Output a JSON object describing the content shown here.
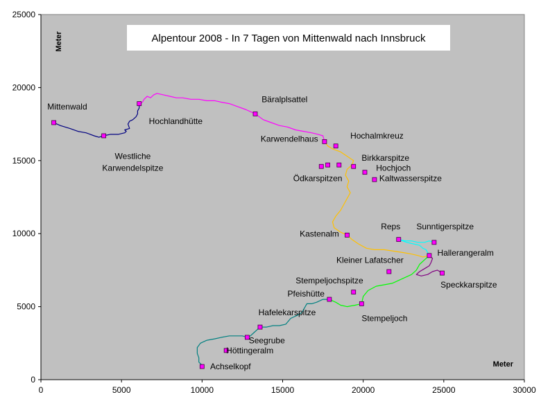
{
  "chart_data": {
    "type": "scatter",
    "title": "Alpentour 2008 - In 7 Tagen von Mittenwald nach Innsbruck",
    "xlabel": "Meter",
    "ylabel": "Meter",
    "xlim": [
      0,
      30000
    ],
    "ylim": [
      0,
      25000
    ],
    "x_ticks": [
      0,
      5000,
      10000,
      15000,
      20000,
      25000,
      30000
    ],
    "y_ticks": [
      0,
      5000,
      10000,
      15000,
      20000,
      25000
    ],
    "grid": false,
    "plot_background": "#c0c0c0",
    "points": [
      {
        "name": "Mittenwald",
        "x": 800,
        "y": 17600
      },
      {
        "name": "Westliche Karwendelspitze",
        "x": 3900,
        "y": 16700
      },
      {
        "name": "Hochlandhütte",
        "x": 6100,
        "y": 18900
      },
      {
        "name": "Bäralplsattel",
        "x": 13300,
        "y": 18200
      },
      {
        "name": "Karwendelhaus",
        "x": 17600,
        "y": 16300
      },
      {
        "name": "Hochalmkreuz",
        "x": 18300,
        "y": 16000
      },
      {
        "name": "Ödkarspitzen 1",
        "x": 17400,
        "y": 14600
      },
      {
        "name": "Ödkarspitzen 2",
        "x": 17800,
        "y": 14700
      },
      {
        "name": "Ödkarspitzen 3",
        "x": 18500,
        "y": 14700
      },
      {
        "name": "Birkkarspitze",
        "x": 19400,
        "y": 14600
      },
      {
        "name": "Hochjoch",
        "x": 20100,
        "y": 14200
      },
      {
        "name": "Kaltwasserspitze",
        "x": 20700,
        "y": 13700
      },
      {
        "name": "Kastenalm",
        "x": 19000,
        "y": 9900
      },
      {
        "name": "Reps",
        "x": 22200,
        "y": 9600
      },
      {
        "name": "Sunntigerspitze",
        "x": 24400,
        "y": 9400
      },
      {
        "name": "Hallerangeralm",
        "x": 24100,
        "y": 8500
      },
      {
        "name": "Kleiner Lafatscher",
        "x": 21600,
        "y": 7400
      },
      {
        "name": "Speckkarspitze",
        "x": 24900,
        "y": 7300
      },
      {
        "name": "Stempeljochspitze",
        "x": 19400,
        "y": 6000
      },
      {
        "name": "Pfeishütte",
        "x": 17900,
        "y": 5500
      },
      {
        "name": "Stempeljoch",
        "x": 19900,
        "y": 5200
      },
      {
        "name": "Hafelekarspitze",
        "x": 13600,
        "y": 3600
      },
      {
        "name": "Seegrube",
        "x": 12800,
        "y": 2900
      },
      {
        "name": "Höttingeralm",
        "x": 11500,
        "y": 2000
      },
      {
        "name": "Achselkopf",
        "x": 10000,
        "y": 900
      }
    ],
    "labels": [
      {
        "text": "Mittenwald",
        "x": 400,
        "y": 18500
      },
      {
        "text": "Westliche",
        "x": 5700,
        "y": 15100
      },
      {
        "text": "Karwendelspitze",
        "x": 5700,
        "y": 14300
      },
      {
        "text": "Hochlandhütte",
        "x": 6700,
        "y": 17500
      },
      {
        "text": "Bäralplsattel",
        "x": 13700,
        "y": 19000
      },
      {
        "text": "Karwendelhaus",
        "x": 17200,
        "y": 16300
      },
      {
        "text": "Hochalmkreuz",
        "x": 19200,
        "y": 16500
      },
      {
        "text": "Birkkarspitze",
        "x": 19900,
        "y": 15000
      },
      {
        "text": "Hochjoch",
        "x": 20800,
        "y": 14300
      },
      {
        "text": "Ödkarspitzen",
        "x": 18700,
        "y": 13600
      },
      {
        "text": "Kaltwasserspitze",
        "x": 21000,
        "y": 13600
      },
      {
        "text": "Kastenalm",
        "x": 18500,
        "y": 9800
      },
      {
        "text": "Reps",
        "x": 21100,
        "y": 10300
      },
      {
        "text": "Sunntigerspitze",
        "x": 23300,
        "y": 10300
      },
      {
        "text": "Hallerangeralm",
        "x": 24600,
        "y": 8500
      },
      {
        "text": "Kleiner Lafatscher",
        "x": 22500,
        "y": 8000
      },
      {
        "text": "Stempeljochspitze",
        "x": 20000,
        "y": 6600
      },
      {
        "text": "Pfeishütte",
        "x": 17600,
        "y": 5700
      },
      {
        "text": "Speckkarspitze",
        "x": 24800,
        "y": 6300
      },
      {
        "text": "Stempeljoch",
        "x": 19900,
        "y": 4000
      },
      {
        "text": "Hafelekarspitze",
        "x": 13500,
        "y": 4400
      },
      {
        "text": "Seegrube",
        "x": 12900,
        "y": 2500
      },
      {
        "text": "Höttingeralm",
        "x": 11500,
        "y": 1800
      },
      {
        "text": "Achselkopf",
        "x": 10500,
        "y": 700
      }
    ],
    "series": [
      {
        "color": "#000080",
        "points": [
          [
            800,
            17600
          ],
          [
            1200,
            17400
          ],
          [
            1800,
            17200
          ],
          [
            2300,
            17000
          ],
          [
            2800,
            16900
          ],
          [
            3300,
            16700
          ],
          [
            3600,
            16600
          ],
          [
            3900,
            16700
          ],
          [
            4300,
            16800
          ],
          [
            4800,
            16800
          ],
          [
            5200,
            16900
          ],
          [
            5300,
            17000
          ],
          [
            5200,
            17100
          ],
          [
            5500,
            17200
          ],
          [
            5400,
            17500
          ],
          [
            5500,
            17700
          ],
          [
            5700,
            17800
          ],
          [
            5900,
            18000
          ],
          [
            6000,
            18200
          ],
          [
            6000,
            18400
          ],
          [
            6100,
            18600
          ],
          [
            6100,
            18900
          ]
        ]
      },
      {
        "color": "#ff00ff",
        "points": [
          [
            6100,
            18900
          ],
          [
            6300,
            19000
          ],
          [
            6400,
            19200
          ],
          [
            6600,
            19400
          ],
          [
            6800,
            19300
          ],
          [
            7000,
            19500
          ],
          [
            7200,
            19600
          ],
          [
            7600,
            19500
          ],
          [
            8000,
            19400
          ],
          [
            8400,
            19300
          ],
          [
            8800,
            19300
          ],
          [
            9300,
            19200
          ],
          [
            9800,
            19200
          ],
          [
            10300,
            19100
          ],
          [
            10800,
            19100
          ],
          [
            11200,
            19000
          ],
          [
            11700,
            18900
          ],
          [
            12200,
            18700
          ],
          [
            12700,
            18500
          ],
          [
            13100,
            18300
          ],
          [
            13300,
            18200
          ],
          [
            13800,
            17800
          ],
          [
            14300,
            17600
          ],
          [
            14800,
            17400
          ],
          [
            15300,
            17300
          ],
          [
            15800,
            17100
          ],
          [
            16300,
            17000
          ],
          [
            16800,
            16900
          ],
          [
            17200,
            16800
          ],
          [
            17500,
            16700
          ],
          [
            17600,
            16300
          ]
        ]
      },
      {
        "color": "#ffc000",
        "points": [
          [
            17600,
            16300
          ],
          [
            17800,
            16000
          ],
          [
            18100,
            15800
          ],
          [
            18600,
            15600
          ],
          [
            19000,
            15300
          ],
          [
            19400,
            15000
          ],
          [
            19300,
            14700
          ],
          [
            19000,
            14400
          ],
          [
            18900,
            14000
          ],
          [
            19100,
            13600
          ],
          [
            19000,
            13200
          ],
          [
            19200,
            12800
          ],
          [
            19000,
            12400
          ],
          [
            18800,
            12000
          ],
          [
            18600,
            11600
          ],
          [
            18300,
            11200
          ],
          [
            18100,
            10800
          ],
          [
            18200,
            10400
          ],
          [
            18600,
            10100
          ],
          [
            19000,
            9900
          ],
          [
            19300,
            9600
          ],
          [
            19700,
            9300
          ],
          [
            20200,
            9000
          ],
          [
            20700,
            8900
          ],
          [
            21300,
            8900
          ],
          [
            21900,
            8800
          ],
          [
            22500,
            8700
          ],
          [
            23000,
            8600
          ],
          [
            23400,
            8500
          ],
          [
            23700,
            8400
          ],
          [
            24100,
            8500
          ]
        ]
      },
      {
        "color": "#00ffff",
        "points": [
          [
            24100,
            8500
          ],
          [
            24000,
            8700
          ],
          [
            23900,
            8900
          ],
          [
            23700,
            9000
          ],
          [
            23500,
            9200
          ],
          [
            23100,
            9300
          ],
          [
            22700,
            9400
          ],
          [
            22200,
            9600
          ],
          [
            22600,
            9500
          ],
          [
            23000,
            9500
          ],
          [
            23400,
            9400
          ],
          [
            23800,
            9400
          ],
          [
            24100,
            9500
          ],
          [
            24400,
            9400
          ]
        ]
      },
      {
        "color": "#800080",
        "points": [
          [
            24100,
            8500
          ],
          [
            24300,
            8300
          ],
          [
            24200,
            8000
          ],
          [
            24100,
            7800
          ],
          [
            23800,
            7600
          ],
          [
            23500,
            7400
          ],
          [
            23300,
            7200
          ],
          [
            23600,
            7100
          ],
          [
            24000,
            7200
          ],
          [
            24300,
            7400
          ],
          [
            24600,
            7500
          ],
          [
            24900,
            7300
          ]
        ]
      },
      {
        "color": "#00ff00",
        "points": [
          [
            24100,
            8500
          ],
          [
            23800,
            8200
          ],
          [
            23500,
            7900
          ],
          [
            23300,
            7500
          ],
          [
            23000,
            7200
          ],
          [
            22600,
            7000
          ],
          [
            22200,
            6800
          ],
          [
            21800,
            6600
          ],
          [
            21300,
            6500
          ],
          [
            20800,
            6400
          ],
          [
            20300,
            6100
          ],
          [
            20000,
            5700
          ],
          [
            19900,
            5200
          ],
          [
            19500,
            5100
          ],
          [
            19000,
            5000
          ],
          [
            18600,
            5100
          ],
          [
            18300,
            5300
          ],
          [
            17900,
            5500
          ]
        ]
      },
      {
        "color": "#008080",
        "points": [
          [
            17900,
            5500
          ],
          [
            17500,
            5500
          ],
          [
            17100,
            5300
          ],
          [
            16800,
            5200
          ],
          [
            16500,
            5200
          ],
          [
            16300,
            4800
          ],
          [
            16200,
            4600
          ],
          [
            15900,
            4400
          ],
          [
            15500,
            4200
          ],
          [
            15200,
            3800
          ],
          [
            14800,
            3700
          ],
          [
            14400,
            3700
          ],
          [
            14000,
            3600
          ],
          [
            13600,
            3600
          ],
          [
            13400,
            3400
          ],
          [
            13200,
            3200
          ],
          [
            13000,
            3000
          ],
          [
            12800,
            2900
          ],
          [
            12500,
            3000
          ],
          [
            12100,
            3000
          ],
          [
            11700,
            3000
          ],
          [
            11200,
            2900
          ],
          [
            10800,
            2800
          ],
          [
            10300,
            2700
          ],
          [
            9900,
            2500
          ],
          [
            9700,
            2200
          ],
          [
            9700,
            1800
          ],
          [
            9800,
            1500
          ],
          [
            9800,
            1200
          ],
          [
            10000,
            1000
          ],
          [
            10100,
            900
          ]
        ]
      }
    ]
  }
}
